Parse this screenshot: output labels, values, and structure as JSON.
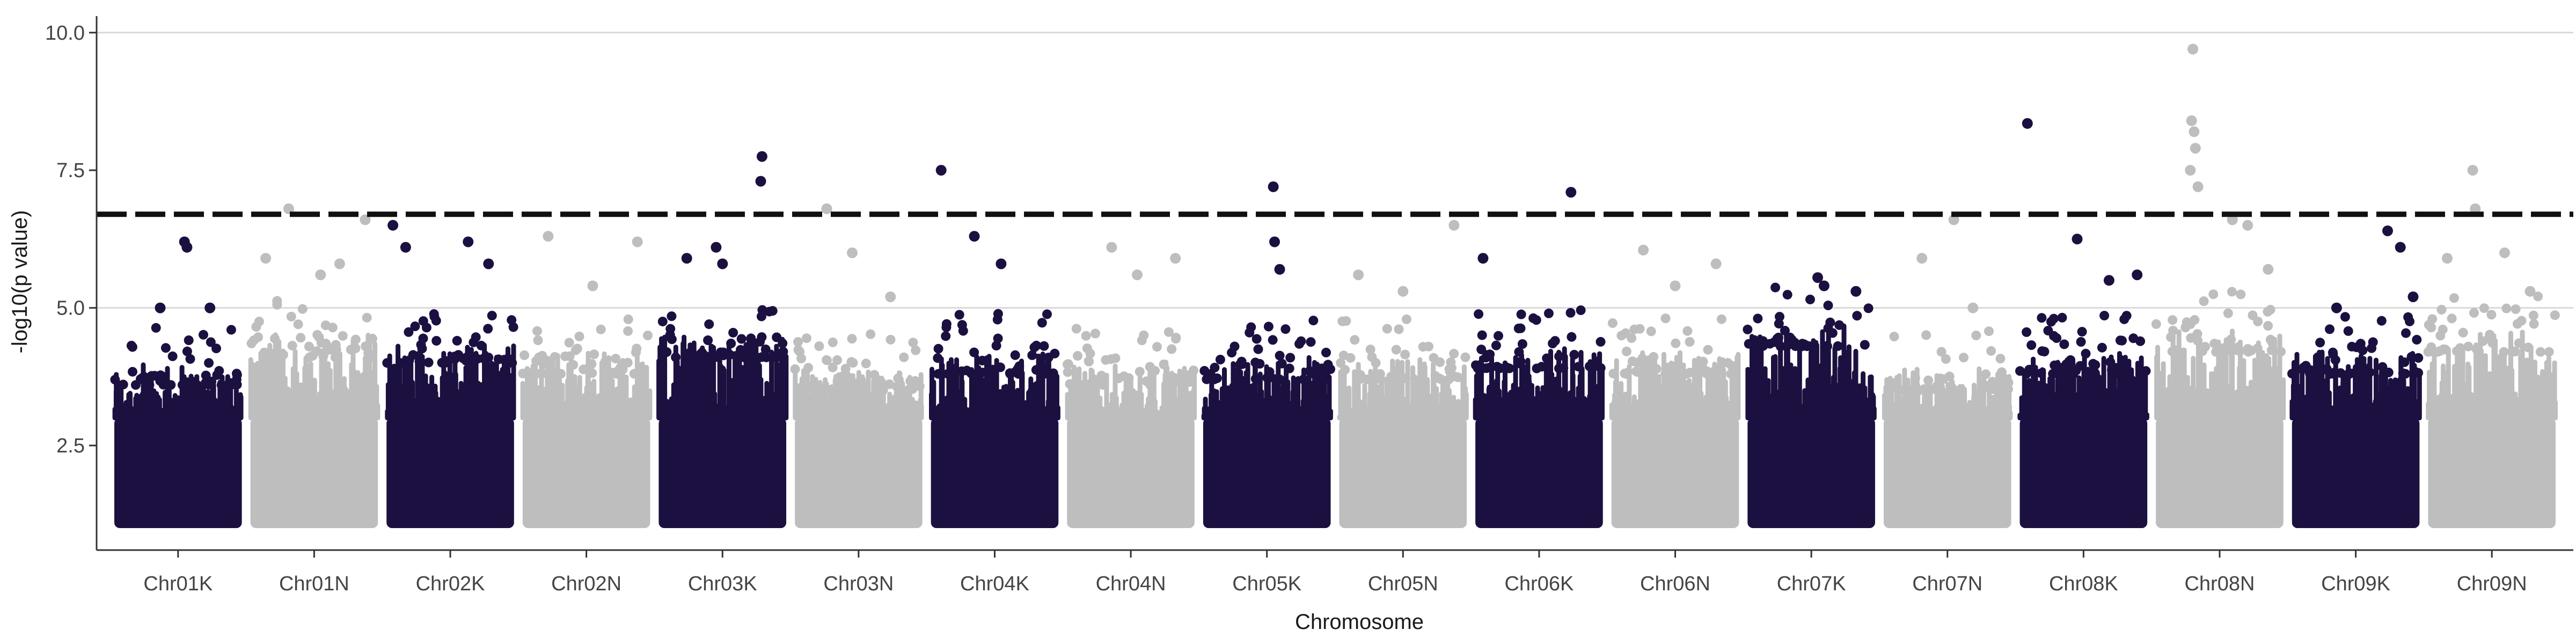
{
  "chart_data": {
    "type": "scatter",
    "subtype": "manhattan",
    "xlabel": "Chromosome",
    "ylabel": "-log10(p value)",
    "ylim": [
      0.6,
      10.3
    ],
    "y_ticks": [
      2.5,
      5.0,
      7.5,
      10.0
    ],
    "y_tick_labels": [
      "2.5",
      "5.0",
      "7.5",
      "10.0"
    ],
    "grid_major_y": [
      5.0,
      10.0
    ],
    "significance_threshold": 6.7,
    "threshold_style": "dashed",
    "min_plotted_value": 1.0,
    "colors": {
      "odd": "#1c1040",
      "even": "#bebebe",
      "threshold": "#111111",
      "grid": "#d9d9d9",
      "axis": "#333333"
    },
    "chromosomes": [
      {
        "name": "Chr01K",
        "bulk": 3.9,
        "spikes": [
          [
            0.36,
            5.0
          ],
          [
            0.55,
            6.2
          ],
          [
            0.57,
            6.1
          ],
          [
            0.75,
            5.0
          ]
        ]
      },
      {
        "name": "Chr01N",
        "bulk": 4.4,
        "spikes": [
          [
            0.12,
            5.9
          ],
          [
            0.3,
            6.8
          ],
          [
            0.55,
            5.6
          ],
          [
            0.7,
            5.8
          ],
          [
            0.9,
            6.6
          ]
        ]
      },
      {
        "name": "Chr02K",
        "bulk": 4.3,
        "spikes": [
          [
            0.05,
            6.5
          ],
          [
            0.15,
            6.1
          ],
          [
            0.64,
            6.2
          ],
          [
            0.8,
            5.8
          ]
        ]
      },
      {
        "name": "Chr02N",
        "bulk": 4.1,
        "spikes": [
          [
            0.2,
            6.3
          ],
          [
            0.55,
            5.4
          ],
          [
            0.9,
            6.2
          ]
        ]
      },
      {
        "name": "Chr03K",
        "bulk": 4.4,
        "spikes": [
          [
            0.22,
            5.9
          ],
          [
            0.45,
            6.1
          ],
          [
            0.5,
            5.8
          ],
          [
            0.8,
            7.3
          ],
          [
            0.81,
            7.75
          ]
        ]
      },
      {
        "name": "Chr03N",
        "bulk": 3.8,
        "spikes": [
          [
            0.25,
            6.8
          ],
          [
            0.45,
            6.0
          ],
          [
            0.75,
            5.2
          ]
        ]
      },
      {
        "name": "Chr04K",
        "bulk": 4.1,
        "spikes": [
          [
            0.08,
            7.5
          ],
          [
            0.34,
            6.3
          ],
          [
            0.55,
            5.8
          ]
        ]
      },
      {
        "name": "Chr04N",
        "bulk": 3.9,
        "spikes": [
          [
            0.35,
            6.1
          ],
          [
            0.55,
            5.6
          ],
          [
            0.85,
            5.9
          ]
        ]
      },
      {
        "name": "Chr05K",
        "bulk": 4.0,
        "spikes": [
          [
            0.55,
            7.2
          ],
          [
            0.56,
            6.2
          ],
          [
            0.6,
            5.7
          ]
        ]
      },
      {
        "name": "Chr05N",
        "bulk": 4.0,
        "spikes": [
          [
            0.15,
            5.6
          ],
          [
            0.5,
            5.3
          ],
          [
            0.9,
            6.5
          ]
        ]
      },
      {
        "name": "Chr06K",
        "bulk": 4.2,
        "spikes": [
          [
            0.06,
            5.9
          ],
          [
            0.75,
            7.1
          ]
        ]
      },
      {
        "name": "Chr06N",
        "bulk": 4.1,
        "spikes": [
          [
            0.25,
            6.05
          ],
          [
            0.5,
            5.4
          ],
          [
            0.82,
            5.8
          ]
        ]
      },
      {
        "name": "Chr07K",
        "bulk": 4.6,
        "spikes": [
          [
            0.55,
            5.55
          ],
          [
            0.6,
            5.4
          ],
          [
            0.85,
            5.3
          ]
        ]
      },
      {
        "name": "Chr07N",
        "bulk": 3.8,
        "spikes": [
          [
            0.3,
            5.9
          ],
          [
            0.55,
            6.6
          ],
          [
            0.7,
            5.0
          ]
        ]
      },
      {
        "name": "Chr08K",
        "bulk": 4.1,
        "spikes": [
          [
            0.06,
            8.35
          ],
          [
            0.45,
            6.25
          ],
          [
            0.7,
            5.5
          ],
          [
            0.92,
            5.6
          ]
        ]
      },
      {
        "name": "Chr08N",
        "bulk": 4.5,
        "spikes": [
          [
            0.29,
            9.7
          ],
          [
            0.28,
            8.4
          ],
          [
            0.3,
            8.2
          ],
          [
            0.31,
            7.9
          ],
          [
            0.27,
            7.5
          ],
          [
            0.33,
            7.2
          ],
          [
            0.6,
            6.6
          ],
          [
            0.72,
            6.5
          ],
          [
            0.88,
            5.7
          ]
        ]
      },
      {
        "name": "Chr09K",
        "bulk": 4.1,
        "spikes": [
          [
            0.35,
            5.0
          ],
          [
            0.75,
            6.4
          ],
          [
            0.85,
            6.1
          ],
          [
            0.95,
            5.2
          ]
        ]
      },
      {
        "name": "Chr09N",
        "bulk": 4.5,
        "spikes": [
          [
            0.15,
            5.9
          ],
          [
            0.35,
            7.5
          ],
          [
            0.37,
            6.8
          ],
          [
            0.6,
            6.0
          ],
          [
            0.8,
            5.3
          ]
        ]
      }
    ]
  }
}
